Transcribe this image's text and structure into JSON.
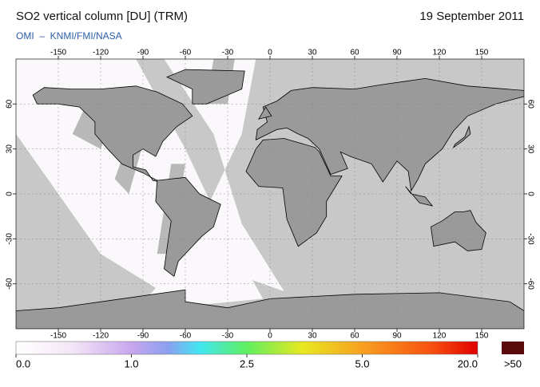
{
  "header": {
    "title": "SO2 vertical column [DU] (TRM)",
    "date": "19 September 2011",
    "source": "OMI  –  KNMI/FMI/NASA"
  },
  "map": {
    "xlim": [
      -180,
      180
    ],
    "ylim": [
      -90,
      90
    ],
    "xticks": [
      -150,
      -120,
      -90,
      -60,
      -30,
      0,
      30,
      60,
      90,
      120,
      150
    ],
    "yticks": [
      60,
      30,
      0,
      -30,
      -60
    ]
  },
  "colorbar": {
    "ticks": [
      {
        "value": 0,
        "label": "0.0"
      },
      {
        "value": 1,
        "label": "1.0"
      },
      {
        "value": 2.5,
        "label": "2.5"
      },
      {
        "value": 5,
        "label": "5.0"
      },
      {
        "value": 20,
        "label": "20.0"
      }
    ],
    "overflow": ">50"
  }
}
